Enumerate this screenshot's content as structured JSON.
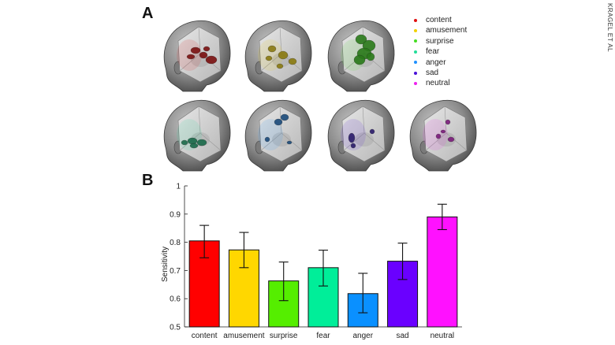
{
  "figure": {
    "panel_a_label": "A",
    "panel_b_label": "B",
    "side_text": "KRAGEL ET AL"
  },
  "legend": [
    {
      "label": "content",
      "color": "#e01010"
    },
    {
      "label": "amusement",
      "color": "#f0d000"
    },
    {
      "label": "surprise",
      "color": "#44dd22"
    },
    {
      "label": "fear",
      "color": "#22dd99"
    },
    {
      "label": "anger",
      "color": "#1e90ff"
    },
    {
      "label": "sad",
      "color": "#4a10d8"
    },
    {
      "label": "neutral",
      "color": "#ee22ee"
    }
  ],
  "brains": [
    {
      "emotion": "content",
      "blob_color": "#7a1010"
    },
    {
      "emotion": "amusement",
      "blob_color": "#8a7a10"
    },
    {
      "emotion": "surprise",
      "blob_color": "#2a7a1a"
    },
    {
      "emotion": "fear",
      "blob_color": "#1a6a4a"
    },
    {
      "emotion": "anger",
      "blob_color": "#1a4a7a"
    },
    {
      "emotion": "sad",
      "blob_color": "#2a1a6a"
    },
    {
      "emotion": "neutral",
      "blob_color": "#7a1a7a"
    }
  ],
  "chart_data": {
    "type": "bar",
    "title": "",
    "xlabel": "",
    "ylabel": "Sensitivity",
    "ylim": [
      0.5,
      1
    ],
    "yticks": [
      "0.5",
      "0.6",
      "0.7",
      "0.8",
      "0.9",
      "1"
    ],
    "categories": [
      "content",
      "amusement",
      "surprise",
      "fear",
      "anger",
      "sad",
      "neutral"
    ],
    "values": [
      0.805,
      0.773,
      0.663,
      0.71,
      0.618,
      0.733,
      0.89
    ],
    "error_low": [
      0.745,
      0.71,
      0.593,
      0.645,
      0.55,
      0.668,
      0.845
    ],
    "error_high": [
      0.86,
      0.835,
      0.73,
      0.772,
      0.69,
      0.797,
      0.935
    ],
    "colors": [
      "#ff0000",
      "#ffd700",
      "#55ee00",
      "#00ee99",
      "#0a90ff",
      "#6a00ff",
      "#ff11ff"
    ],
    "grid": false
  }
}
